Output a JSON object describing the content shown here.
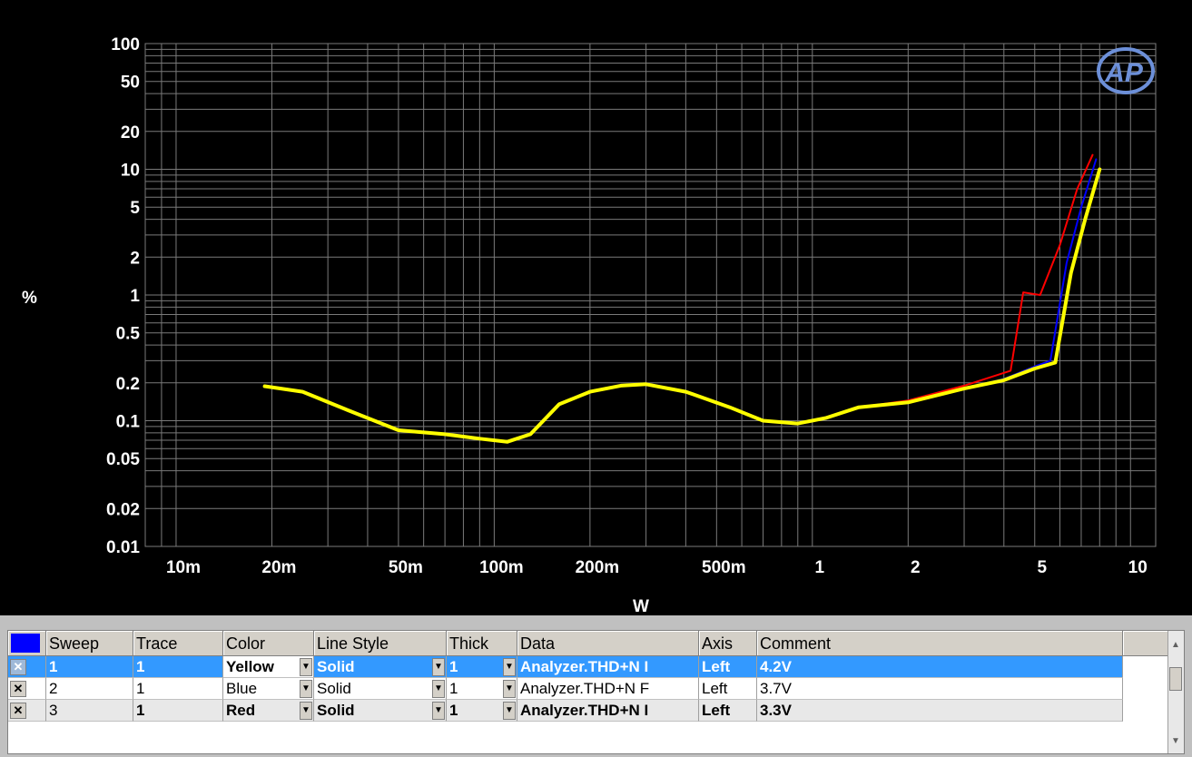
{
  "chart_data": {
    "type": "line",
    "xlabel": "W",
    "ylabel": "%",
    "x_scale": "log",
    "y_scale": "log",
    "xlim": [
      0.008,
      12
    ],
    "ylim": [
      0.01,
      100
    ],
    "x_ticks": [
      {
        "v": 0.01,
        "label": "10m"
      },
      {
        "v": 0.02,
        "label": "20m"
      },
      {
        "v": 0.05,
        "label": "50m"
      },
      {
        "v": 0.1,
        "label": "100m"
      },
      {
        "v": 0.2,
        "label": "200m"
      },
      {
        "v": 0.5,
        "label": "500m"
      },
      {
        "v": 1,
        "label": "1"
      },
      {
        "v": 2,
        "label": "2"
      },
      {
        "v": 5,
        "label": "5"
      },
      {
        "v": 10,
        "label": "10"
      }
    ],
    "y_ticks": [
      {
        "v": 100,
        "label": "100"
      },
      {
        "v": 50,
        "label": "50"
      },
      {
        "v": 20,
        "label": "20"
      },
      {
        "v": 10,
        "label": "10"
      },
      {
        "v": 5,
        "label": "5"
      },
      {
        "v": 2,
        "label": "2"
      },
      {
        "v": 1,
        "label": "1"
      },
      {
        "v": 0.5,
        "label": "0.5"
      },
      {
        "v": 0.2,
        "label": "0.2"
      },
      {
        "v": 0.1,
        "label": "0.1"
      },
      {
        "v": 0.05,
        "label": "0.05"
      },
      {
        "v": 0.02,
        "label": "0.02"
      },
      {
        "v": 0.01,
        "label": "0.01"
      }
    ],
    "grid": true,
    "series": [
      {
        "name": "4.2V",
        "color": "#ffff00",
        "width": 4,
        "points": [
          [
            0.019,
            0.188
          ],
          [
            0.025,
            0.17
          ],
          [
            0.035,
            0.12
          ],
          [
            0.05,
            0.084
          ],
          [
            0.07,
            0.078
          ],
          [
            0.09,
            0.072
          ],
          [
            0.11,
            0.068
          ],
          [
            0.13,
            0.078
          ],
          [
            0.16,
            0.135
          ],
          [
            0.2,
            0.17
          ],
          [
            0.25,
            0.19
          ],
          [
            0.3,
            0.195
          ],
          [
            0.4,
            0.17
          ],
          [
            0.55,
            0.128
          ],
          [
            0.7,
            0.1
          ],
          [
            0.9,
            0.095
          ],
          [
            1.1,
            0.105
          ],
          [
            1.4,
            0.128
          ],
          [
            2,
            0.14
          ],
          [
            3,
            0.18
          ],
          [
            4,
            0.21
          ],
          [
            5,
            0.26
          ],
          [
            5.8,
            0.29
          ],
          [
            6.5,
            1.5
          ],
          [
            7.2,
            4
          ],
          [
            8.0,
            10
          ]
        ]
      },
      {
        "name": "3.7V",
        "color": "#0000ff",
        "width": 2,
        "points": [
          [
            0.019,
            0.188
          ],
          [
            0.025,
            0.17
          ],
          [
            0.035,
            0.12
          ],
          [
            0.05,
            0.084
          ],
          [
            0.07,
            0.078
          ],
          [
            0.09,
            0.072
          ],
          [
            0.11,
            0.068
          ],
          [
            0.13,
            0.078
          ],
          [
            0.16,
            0.135
          ],
          [
            0.2,
            0.17
          ],
          [
            0.25,
            0.19
          ],
          [
            0.3,
            0.195
          ],
          [
            0.4,
            0.17
          ],
          [
            0.55,
            0.128
          ],
          [
            0.7,
            0.1
          ],
          [
            0.9,
            0.095
          ],
          [
            1.1,
            0.105
          ],
          [
            1.4,
            0.128
          ],
          [
            2,
            0.14
          ],
          [
            3,
            0.18
          ],
          [
            4,
            0.215
          ],
          [
            5,
            0.27
          ],
          [
            5.6,
            0.3
          ],
          [
            6.3,
            1.8
          ],
          [
            7.0,
            5
          ],
          [
            7.8,
            12
          ]
        ]
      },
      {
        "name": "3.3V",
        "color": "#ff0000",
        "width": 2,
        "points": [
          [
            0.019,
            0.188
          ],
          [
            0.025,
            0.17
          ],
          [
            0.035,
            0.12
          ],
          [
            0.05,
            0.084
          ],
          [
            0.07,
            0.078
          ],
          [
            0.09,
            0.072
          ],
          [
            0.11,
            0.068
          ],
          [
            0.13,
            0.078
          ],
          [
            0.16,
            0.135
          ],
          [
            0.2,
            0.17
          ],
          [
            0.25,
            0.19
          ],
          [
            0.3,
            0.195
          ],
          [
            0.4,
            0.17
          ],
          [
            0.55,
            0.128
          ],
          [
            0.7,
            0.1
          ],
          [
            0.9,
            0.095
          ],
          [
            1.1,
            0.105
          ],
          [
            1.4,
            0.128
          ],
          [
            2,
            0.145
          ],
          [
            3,
            0.19
          ],
          [
            4.2,
            0.25
          ],
          [
            4.6,
            1.05
          ],
          [
            5.2,
            1.0
          ],
          [
            6.0,
            2.5
          ],
          [
            6.8,
            7
          ],
          [
            7.6,
            13
          ]
        ]
      }
    ]
  },
  "logo_text": "AP",
  "legend": {
    "headers": {
      "sweep": "Sweep",
      "trace": "Trace",
      "color": "Color",
      "line_style": "Line Style",
      "thick": "Thick",
      "data": "Data",
      "axis": "Axis",
      "comment": "Comment"
    },
    "rows": [
      {
        "sweep": "1",
        "trace": "1",
        "color": "Yellow",
        "line_style": "Solid",
        "thick": "1",
        "data": "Analyzer.THD+N I",
        "axis": "Left",
        "comment": "4.2V"
      },
      {
        "sweep": "2",
        "trace": "1",
        "color": "Blue",
        "line_style": "Solid",
        "thick": "1",
        "data": "Analyzer.THD+N F",
        "axis": "Left",
        "comment": "3.7V"
      },
      {
        "sweep": "3",
        "trace": "1",
        "color": "Red",
        "line_style": "Solid",
        "thick": "1",
        "data": "Analyzer.THD+N I",
        "axis": "Left",
        "comment": "3.3V"
      }
    ]
  }
}
